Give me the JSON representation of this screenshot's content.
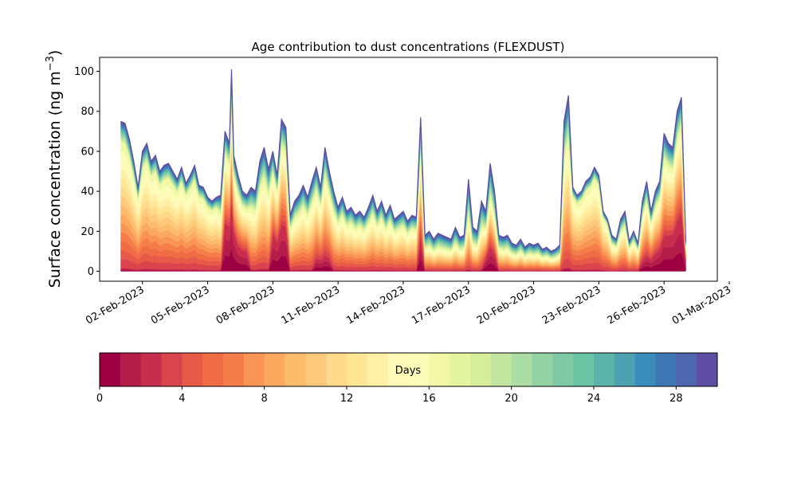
{
  "chart_data": {
    "type": "area",
    "title": "Age contribution to dust concentrations (FLEXDUST)",
    "ylabel": "Surface concentration (ng m",
    "ylabel_sup": "−3",
    "ylabel_close": ")",
    "xlabel": "",
    "ylim": [
      -5,
      107
    ],
    "yticks": [
      0,
      20,
      40,
      60,
      80,
      100
    ],
    "xlim": [
      0,
      29.5
    ],
    "xticks": [
      {
        "label": "02-Feb-2023",
        "day": 1
      },
      {
        "label": "05-Feb-2023",
        "day": 4
      },
      {
        "label": "08-Feb-2023",
        "day": 7
      },
      {
        "label": "11-Feb-2023",
        "day": 10
      },
      {
        "label": "14-Feb-2023",
        "day": 13
      },
      {
        "label": "17-Feb-2023",
        "day": 16
      },
      {
        "label": "20-Feb-2023",
        "day": 19
      },
      {
        "label": "23-Feb-2023",
        "day": 22
      },
      {
        "label": "26-Feb-2023",
        "day": 25
      },
      {
        "label": "01-Mar-2023",
        "day": 28
      }
    ],
    "stack_variable": "age (days)",
    "age_bins": 30,
    "total": [
      [
        0.0,
        75
      ],
      [
        0.2,
        74
      ],
      [
        0.4,
        66
      ],
      [
        0.6,
        55
      ],
      [
        0.8,
        42
      ],
      [
        1.0,
        60
      ],
      [
        1.2,
        64
      ],
      [
        1.4,
        55
      ],
      [
        1.6,
        58
      ],
      [
        1.8,
        50
      ],
      [
        2.0,
        53
      ],
      [
        2.2,
        54
      ],
      [
        2.4,
        50
      ],
      [
        2.6,
        46
      ],
      [
        2.8,
        52
      ],
      [
        3.0,
        44
      ],
      [
        3.2,
        48
      ],
      [
        3.4,
        53
      ],
      [
        3.6,
        43
      ],
      [
        3.8,
        42
      ],
      [
        4.0,
        37
      ],
      [
        4.2,
        35
      ],
      [
        4.4,
        37
      ],
      [
        4.6,
        38
      ],
      [
        4.8,
        70
      ],
      [
        5.0,
        64
      ],
      [
        5.1,
        101
      ],
      [
        5.2,
        58
      ],
      [
        5.4,
        48
      ],
      [
        5.6,
        40
      ],
      [
        5.8,
        38
      ],
      [
        6.0,
        42
      ],
      [
        6.2,
        40
      ],
      [
        6.4,
        55
      ],
      [
        6.6,
        62
      ],
      [
        6.8,
        51
      ],
      [
        7.0,
        60
      ],
      [
        7.2,
        48
      ],
      [
        7.4,
        76
      ],
      [
        7.6,
        72
      ],
      [
        7.8,
        28
      ],
      [
        8.0,
        35
      ],
      [
        8.2,
        38
      ],
      [
        8.4,
        43
      ],
      [
        8.6,
        37
      ],
      [
        8.8,
        45
      ],
      [
        9.0,
        52
      ],
      [
        9.2,
        42
      ],
      [
        9.4,
        62
      ],
      [
        9.6,
        50
      ],
      [
        9.8,
        40
      ],
      [
        10.0,
        32
      ],
      [
        10.2,
        37
      ],
      [
        10.4,
        30
      ],
      [
        10.6,
        32
      ],
      [
        10.8,
        28
      ],
      [
        11.0,
        30
      ],
      [
        11.2,
        27
      ],
      [
        11.4,
        32
      ],
      [
        11.6,
        38
      ],
      [
        11.8,
        30
      ],
      [
        12.0,
        35
      ],
      [
        12.2,
        28
      ],
      [
        12.4,
        33
      ],
      [
        12.6,
        26
      ],
      [
        12.8,
        28
      ],
      [
        13.0,
        30
      ],
      [
        13.2,
        25
      ],
      [
        13.4,
        28
      ],
      [
        13.6,
        27
      ],
      [
        13.8,
        77
      ],
      [
        14.0,
        18
      ],
      [
        14.2,
        20
      ],
      [
        14.4,
        16
      ],
      [
        14.6,
        19
      ],
      [
        14.8,
        18
      ],
      [
        15.0,
        17
      ],
      [
        15.2,
        16
      ],
      [
        15.4,
        22
      ],
      [
        15.6,
        17
      ],
      [
        15.8,
        18
      ],
      [
        16.0,
        46
      ],
      [
        16.2,
        22
      ],
      [
        16.4,
        20
      ],
      [
        16.6,
        35
      ],
      [
        16.8,
        30
      ],
      [
        17.0,
        54
      ],
      [
        17.2,
        40
      ],
      [
        17.4,
        18
      ],
      [
        17.6,
        17
      ],
      [
        17.8,
        18
      ],
      [
        18.0,
        14
      ],
      [
        18.2,
        13
      ],
      [
        18.4,
        16
      ],
      [
        18.6,
        12
      ],
      [
        18.8,
        14
      ],
      [
        19.0,
        13
      ],
      [
        19.2,
        14
      ],
      [
        19.4,
        11
      ],
      [
        19.6,
        12
      ],
      [
        19.8,
        10
      ],
      [
        20.0,
        11
      ],
      [
        20.2,
        13
      ],
      [
        20.4,
        75
      ],
      [
        20.6,
        88
      ],
      [
        20.8,
        42
      ],
      [
        21.0,
        38
      ],
      [
        21.2,
        40
      ],
      [
        21.4,
        45
      ],
      [
        21.6,
        47
      ],
      [
        21.8,
        52
      ],
      [
        22.0,
        48
      ],
      [
        22.2,
        30
      ],
      [
        22.4,
        26
      ],
      [
        22.6,
        18
      ],
      [
        22.8,
        16
      ],
      [
        23.0,
        26
      ],
      [
        23.2,
        30
      ],
      [
        23.4,
        15
      ],
      [
        23.6,
        20
      ],
      [
        23.8,
        14
      ],
      [
        24.0,
        35
      ],
      [
        24.2,
        45
      ],
      [
        24.4,
        30
      ],
      [
        24.6,
        40
      ],
      [
        24.8,
        45
      ],
      [
        25.0,
        69
      ],
      [
        25.2,
        64
      ],
      [
        25.4,
        62
      ],
      [
        25.6,
        80
      ],
      [
        25.8,
        87
      ],
      [
        26.0,
        15
      ]
    ],
    "colorbar": {
      "label": "Days",
      "range": [
        0,
        30
      ],
      "ticks": [
        0,
        4,
        8,
        12,
        16,
        20,
        24,
        28
      ],
      "colors": [
        "#9e0142",
        "#b41c49",
        "#c92d4e",
        "#d9444d",
        "#e75a47",
        "#f06c45",
        "#f57d4a",
        "#f99554",
        "#fca85e",
        "#fdbb6c",
        "#fec97a",
        "#fed98b",
        "#fee695",
        "#fef0a7",
        "#fffab8",
        "#fbfdb9",
        "#f1f9a9",
        "#e5f59d",
        "#d6ee9b",
        "#c2e69f",
        "#abdda4",
        "#96d3a4",
        "#7fcaa5",
        "#6bc4a4",
        "#5bb3a9",
        "#4ca2b0",
        "#3a8cbb",
        "#3f78b4",
        "#4e66ad",
        "#5e4fa2"
      ]
    }
  }
}
